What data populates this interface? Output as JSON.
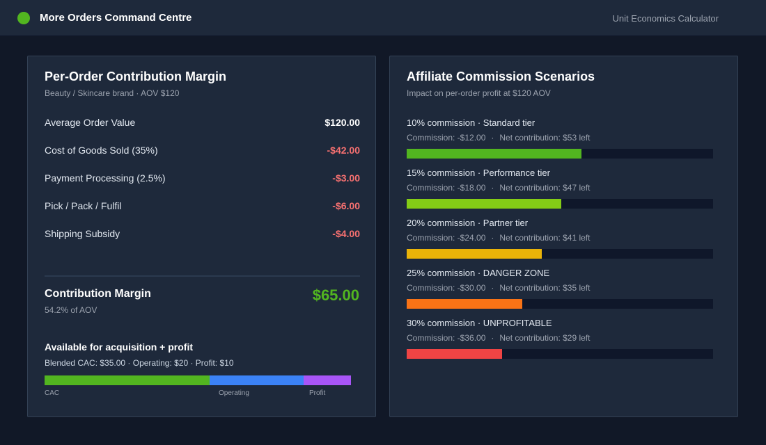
{
  "header": {
    "app_title": "More Orders Command Centre",
    "right_label": "Unit Economics Calculator",
    "brand_color": "#52b520"
  },
  "left_panel": {
    "title": "Per-Order Contribution Margin",
    "subtitle": "Beauty / Skincare brand · AOV $120",
    "line_items": [
      {
        "label": "Average Order Value",
        "value": "$120.00"
      },
      {
        "label": "Cost of Goods Sold (35%)",
        "value": "-$42.00"
      },
      {
        "label": "Payment Processing (2.5%)",
        "value": "-$3.00"
      },
      {
        "label": "Pick / Pack / Fulfil",
        "value": "-$6.00"
      },
      {
        "label": "Shipping Subsidy",
        "value": "-$4.00"
      }
    ],
    "contribution": {
      "title": "Contribution Margin",
      "subtitle": "54.2% of AOV",
      "value": "$65.00"
    },
    "available": {
      "title": "Available for acquisition + profit",
      "subtitle": "Blended CAC: $35.00 · Operating: $20 · Profit: $10",
      "segments": [
        {
          "label": "CAC",
          "amount": 35,
          "color": "#52b520"
        },
        {
          "label": "Operating",
          "amount": 20,
          "color": "#3b82f6"
        },
        {
          "label": "Profit",
          "amount": 10,
          "color": "#a855f7"
        }
      ]
    }
  },
  "right_panel": {
    "title": "Affiliate Commission Scenarios",
    "subtitle": "Impact on per-order profit at $120 AOV",
    "scenarios": [
      {
        "title": "10% commission · Standard tier",
        "commission": "Commission: -$12.00",
        "separator": "·",
        "net": "Net contribution: $53 left",
        "net_value": 53,
        "color": "#52b520"
      },
      {
        "title": "15% commission · Performance tier",
        "commission": "Commission: -$18.00",
        "separator": "·",
        "net": "Net contribution: $47 left",
        "net_value": 47,
        "color": "#84cc16"
      },
      {
        "title": "20% commission · Partner tier",
        "commission": "Commission: -$24.00",
        "separator": "·",
        "net": "Net contribution: $41 left",
        "net_value": 41,
        "color": "#eab308"
      },
      {
        "title": "25% commission · DANGER ZONE",
        "commission": "Commission: -$30.00",
        "separator": "·",
        "net": "Net contribution: $35 left",
        "net_value": 35,
        "color": "#f97316"
      },
      {
        "title": "30% commission · UNPROFITABLE",
        "commission": "Commission: -$36.00",
        "separator": "·",
        "net": "Net contribution: $29 left",
        "net_value": 29,
        "color": "#ef4444"
      }
    ],
    "bar_scale_max": 93
  }
}
